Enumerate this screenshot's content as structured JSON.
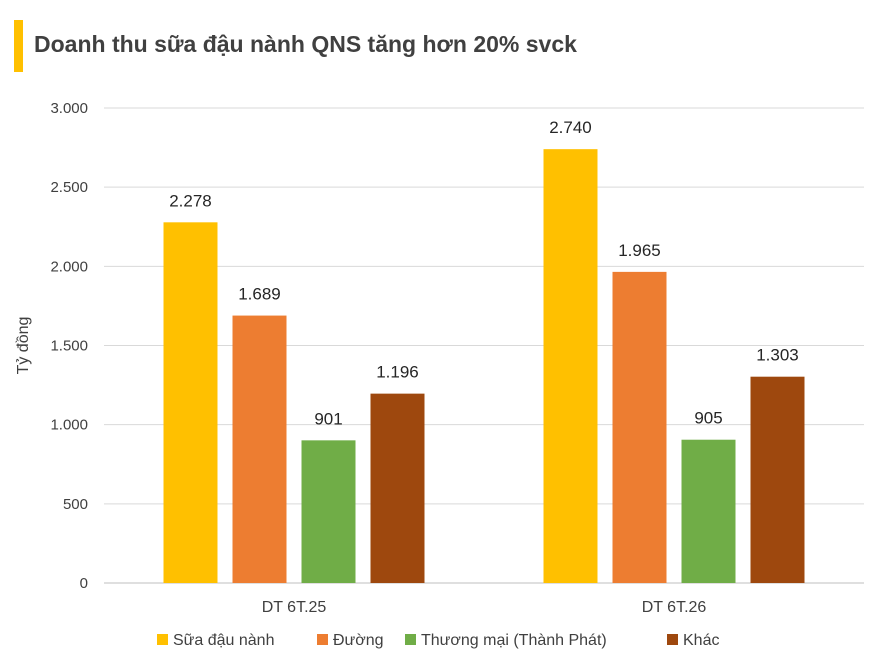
{
  "chart_data": {
    "type": "bar",
    "title": "Doanh thu sữa đậu nành QNS tăng hơn 20% svck",
    "ylabel": "Tỷ đồng",
    "xlabel": "",
    "ylim": [
      0,
      3000
    ],
    "yticks": [
      0,
      500,
      1000,
      1500,
      2000,
      2500,
      3000
    ],
    "ytick_labels": [
      "0",
      "500",
      "1.000",
      "1.500",
      "2.000",
      "2.500",
      "3.000"
    ],
    "categories": [
      "DT 6T.25",
      "DT 6T.26"
    ],
    "grid": true,
    "legend_position": "bottom",
    "series": [
      {
        "name": "Sữa đậu nành",
        "color": "#FFC000",
        "values": [
          2278,
          2740
        ],
        "labels": [
          "2.278",
          "2.740"
        ]
      },
      {
        "name": "Đường",
        "color": "#ED7D31",
        "values": [
          1689,
          1965
        ],
        "labels": [
          "1.689",
          "1.965"
        ]
      },
      {
        "name": "Thương mại (Thành Phát)",
        "color": "#70AD47",
        "values": [
          901,
          905
        ],
        "labels": [
          "901",
          "905"
        ]
      },
      {
        "name": "Khác",
        "color": "#9E480E",
        "values": [
          1196,
          1303
        ],
        "labels": [
          "1.196",
          "1.303"
        ]
      }
    ]
  }
}
